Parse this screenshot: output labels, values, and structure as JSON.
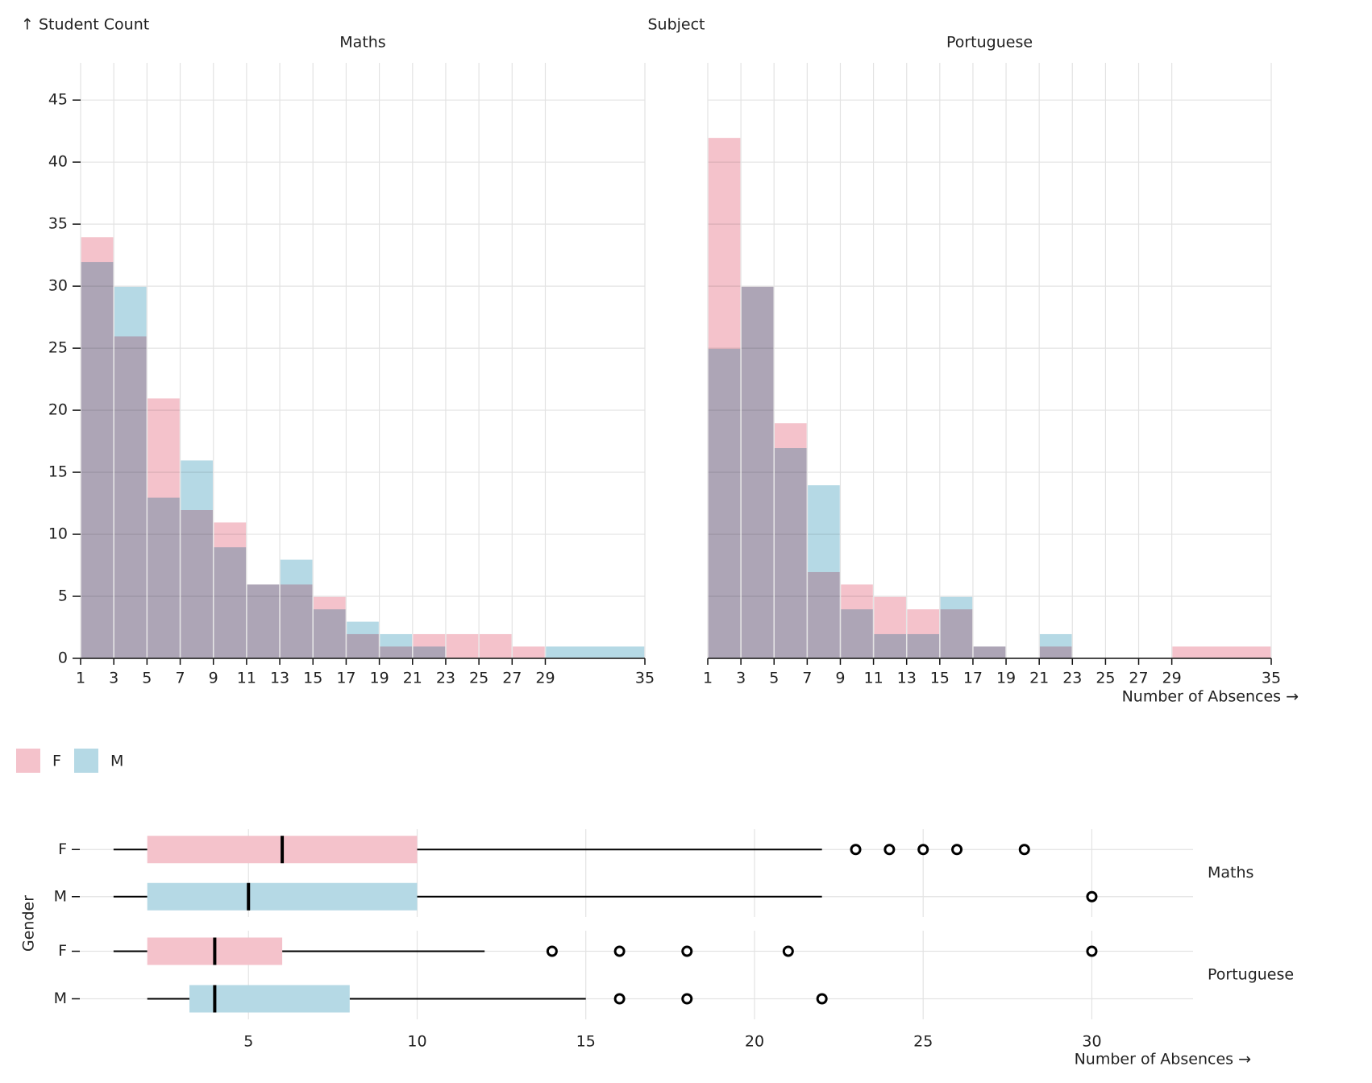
{
  "chart_data": [
    {
      "type": "histogram",
      "y_label": "↑ Student Count",
      "x_label": "Number of Absences →",
      "facet_title": "Subject",
      "series": [
        {
          "name": "F",
          "color": "#f4c2cb"
        },
        {
          "name": "M",
          "color": "#b5d9e5"
        }
      ],
      "bins": [
        1,
        3,
        5,
        7,
        9,
        11,
        13,
        15,
        17,
        19,
        21,
        23,
        25,
        27,
        29,
        35
      ],
      "facets": [
        {
          "name": "Maths",
          "values": [
            [
              34,
              26,
              21,
              12,
              11,
              6,
              6,
              5,
              2,
              1,
              2,
              2,
              2,
              1,
              0
            ],
            [
              32,
              30,
              13,
              16,
              9,
              6,
              8,
              4,
              3,
              2,
              1,
              0,
              0,
              0,
              1
            ]
          ]
        },
        {
          "name": "Portuguese",
          "values": [
            [
              42,
              30,
              19,
              7,
              6,
              5,
              4,
              4,
              1,
              0,
              1,
              0,
              0,
              0,
              1
            ],
            [
              25,
              30,
              17,
              14,
              4,
              2,
              2,
              5,
              1,
              0,
              2,
              0,
              0,
              0,
              0
            ]
          ]
        }
      ],
      "xlim": [
        1,
        35
      ],
      "xticks": [
        1,
        3,
        5,
        7,
        9,
        11,
        13,
        15,
        17,
        19,
        21,
        23,
        25,
        27,
        29,
        35
      ],
      "ylim": [
        0,
        48
      ],
      "yticks": [
        0,
        5,
        10,
        15,
        20,
        25,
        30,
        35,
        40,
        45
      ],
      "grid": true,
      "legend": "bottom-left"
    },
    {
      "type": "box",
      "y_label": "Gender",
      "x_label": "Number of Absences →",
      "categories": [
        "F",
        "M"
      ],
      "facets": [
        {
          "name": "Maths",
          "boxes": [
            {
              "low": 1,
              "q1": 2,
              "median": 6,
              "q3": 10,
              "high": 22,
              "outliers": [
                23,
                24,
                25,
                26,
                28
              ]
            },
            {
              "low": 1,
              "q1": 2,
              "median": 5,
              "q3": 10,
              "high": 22,
              "outliers": [
                30
              ]
            }
          ]
        },
        {
          "name": "Portuguese",
          "boxes": [
            {
              "low": 1,
              "q1": 2,
              "median": 4,
              "q3": 6,
              "high": 12,
              "outliers": [
                14,
                16,
                18,
                21,
                30
              ]
            },
            {
              "low": 2,
              "q1": 3.25,
              "median": 4,
              "q3": 8,
              "high": 15,
              "outliers": [
                16,
                18,
                22
              ]
            }
          ]
        }
      ],
      "xlim": [
        0,
        33
      ],
      "xticks": [
        5,
        10,
        15,
        20,
        25,
        30
      ],
      "grid": true
    }
  ]
}
